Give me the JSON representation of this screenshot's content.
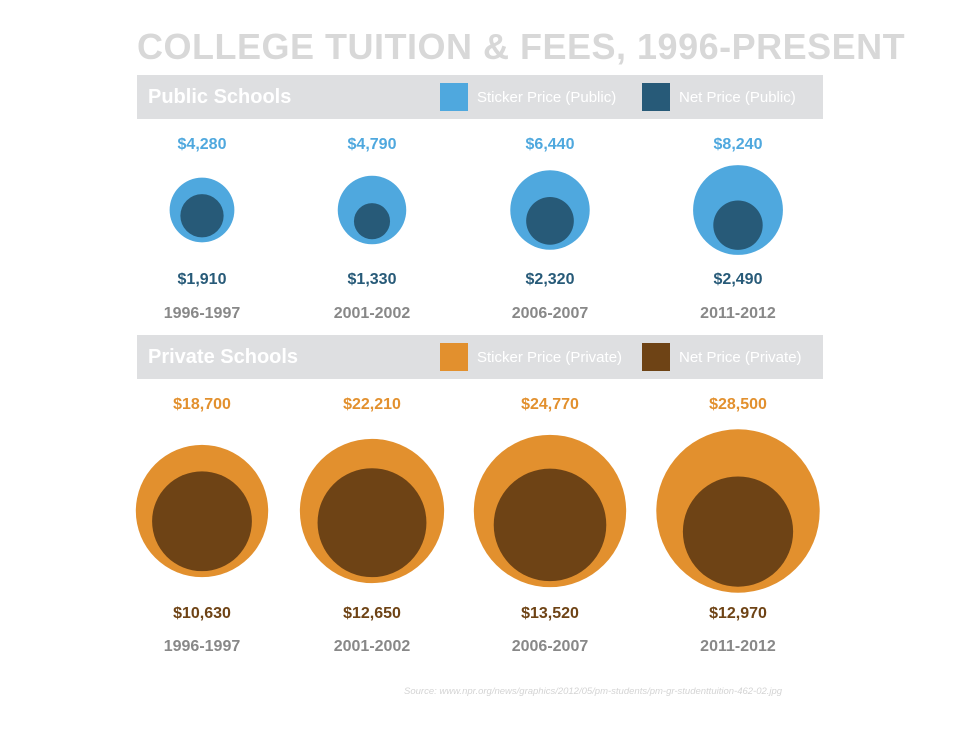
{
  "title": "COLLEGE TUITION & FEES, 1996-PRESENT",
  "source": "Source: www.npr.org/news/graphics/2012/05/pm-students/pm-gr-studenttuition-462-02.jpg",
  "colors": {
    "public_sticker": "#4fa8de",
    "public_net": "#275a78",
    "private_sticker": "#e2902e",
    "private_net": "#6e4315",
    "year_label": "#888888",
    "band_bg": "#dedfe1"
  },
  "chart_data": [
    {
      "type": "bubble",
      "title": "Public Schools",
      "categories": [
        "1996-1997",
        "2001-2002",
        "2006-2007",
        "2011-2012"
      ],
      "series": [
        {
          "name": "Sticker Price (Public)",
          "values": [
            4280,
            4790,
            6440,
            8240
          ],
          "labels": [
            "$4,280",
            "$4,790",
            "$6,440",
            "$8,240"
          ]
        },
        {
          "name": "Net Price (Public)",
          "values": [
            1910,
            1330,
            2320,
            2490
          ],
          "labels": [
            "$1,910",
            "$1,330",
            "$2,320",
            "$2,490"
          ]
        }
      ]
    },
    {
      "type": "bubble",
      "title": "Private Schools",
      "categories": [
        "1996-1997",
        "2001-2002",
        "2006-2007",
        "2011-2012"
      ],
      "series": [
        {
          "name": "Sticker Price (Private)",
          "values": [
            18700,
            22210,
            24770,
            28500
          ],
          "labels": [
            "$18,700",
            "$22,210",
            "$24,770",
            "$28,500"
          ]
        },
        {
          "name": "Net Price (Private)",
          "values": [
            10630,
            12650,
            13520,
            12970
          ],
          "labels": [
            "$10,630",
            "$12,650",
            "$13,520",
            "$12,970"
          ]
        }
      ]
    }
  ]
}
